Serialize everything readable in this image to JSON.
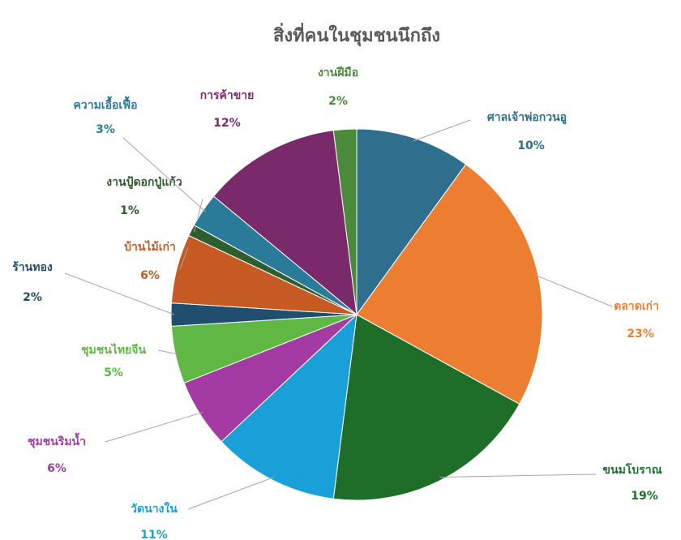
{
  "chart_data": {
    "type": "pie",
    "title": "สิ่งที่คนในชุมชนนึกถึง",
    "categories": [
      "ศาลเจ้าพ่อกวนอู",
      "ตลาดเก่า",
      "ขนมโบราณ",
      "วัดนางใน",
      "ชุมชนริมน้ำ",
      "ชุมชนไทยจีน",
      "ร้านทอง",
      "บ้านไม้เก่า",
      "งานปู้ดอกปู่แก้ว",
      "ความเอื้อเฟื้อ",
      "การค้าขาย",
      "งานฝีมือ"
    ],
    "values": [
      10,
      23,
      19,
      11,
      6,
      5,
      2,
      6,
      1,
      3,
      12,
      2
    ],
    "value_labels": [
      "10%",
      "23%",
      "19%",
      "11%",
      "6%",
      "5%",
      "2%",
      "6%",
      "1%",
      "3%",
      "12%",
      "2%"
    ],
    "colors": [
      "#2e6f8e",
      "#ed7d31",
      "#1e6e2a",
      "#1aa0d8",
      "#a33ba3",
      "#5fb843",
      "#1f4e6e",
      "#c55a22",
      "#2e5e2e",
      "#2a7a9a",
      "#7a2a6a",
      "#4a8a3a"
    ]
  }
}
